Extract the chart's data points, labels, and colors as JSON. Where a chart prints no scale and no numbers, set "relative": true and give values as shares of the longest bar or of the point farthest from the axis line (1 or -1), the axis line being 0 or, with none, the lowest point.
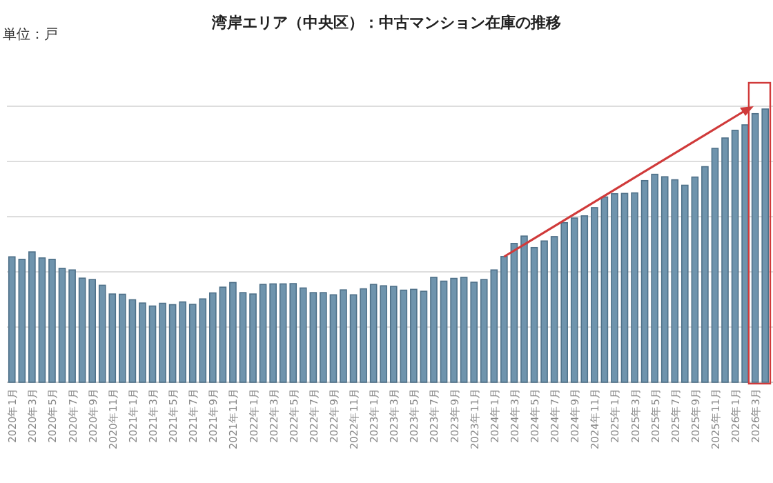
{
  "chart_data": {
    "type": "bar",
    "title": "湾岸エリア（中央区）：中古マンション在庫の推移",
    "ylabel": "単位：戸",
    "relative": true,
    "grid": "y",
    "color": "#6f94ad",
    "categories": [
      "2020年1月",
      null,
      "2020年3月",
      null,
      "2020年5月",
      null,
      "2020年7月",
      null,
      "2020年9月",
      null,
      "2020年11月",
      null,
      "2021年1月",
      null,
      "2021年3月",
      null,
      "2021年5月",
      null,
      "2021年7月",
      null,
      "2021年9月",
      null,
      "2021年11月",
      null,
      "2022年1月",
      null,
      "2022年3月",
      null,
      "2022年5月",
      null,
      "2022年7月",
      null,
      "2022年9月",
      null,
      "2022年11月",
      null,
      "2023年1月",
      null,
      "2023年3月",
      null,
      "2023年5月",
      null,
      "2023年7月",
      null,
      "2023年9月",
      null,
      "2023年11月",
      null,
      "2024年1月",
      null,
      "2024年3月",
      null,
      "2024年5月",
      null,
      "2024年7月",
      null,
      "2024年9月",
      null,
      "2024年11月",
      null,
      "2025年1月",
      null,
      "2025年3月",
      null,
      "2025年5月",
      null,
      "2025年7月",
      null,
      "2025年9月",
      null,
      "2025年11月",
      null,
      "2026年1月",
      null,
      "2026年3月",
      null
    ],
    "values": [
      0.459,
      0.45,
      0.477,
      0.455,
      0.45,
      0.417,
      0.411,
      0.381,
      0.376,
      0.355,
      0.323,
      0.322,
      0.302,
      0.29,
      0.279,
      0.289,
      0.284,
      0.294,
      0.285,
      0.305,
      0.327,
      0.348,
      0.365,
      0.328,
      0.323,
      0.358,
      0.36,
      0.36,
      0.361,
      0.345,
      0.328,
      0.328,
      0.32,
      0.338,
      0.32,
      0.342,
      0.358,
      0.353,
      0.351,
      0.337,
      0.34,
      0.333,
      0.384,
      0.37,
      0.38,
      0.384,
      0.366,
      0.376,
      0.411,
      0.46,
      0.508,
      0.535,
      0.493,
      0.517,
      0.533,
      0.584,
      0.601,
      0.609,
      0.639,
      0.678,
      0.69,
      0.691,
      0.693,
      0.738,
      0.761,
      0.752,
      0.741,
      0.721,
      0.751,
      0.789,
      0.856,
      0.894,
      0.922,
      0.942,
      0.983,
      1.0
    ]
  }
}
